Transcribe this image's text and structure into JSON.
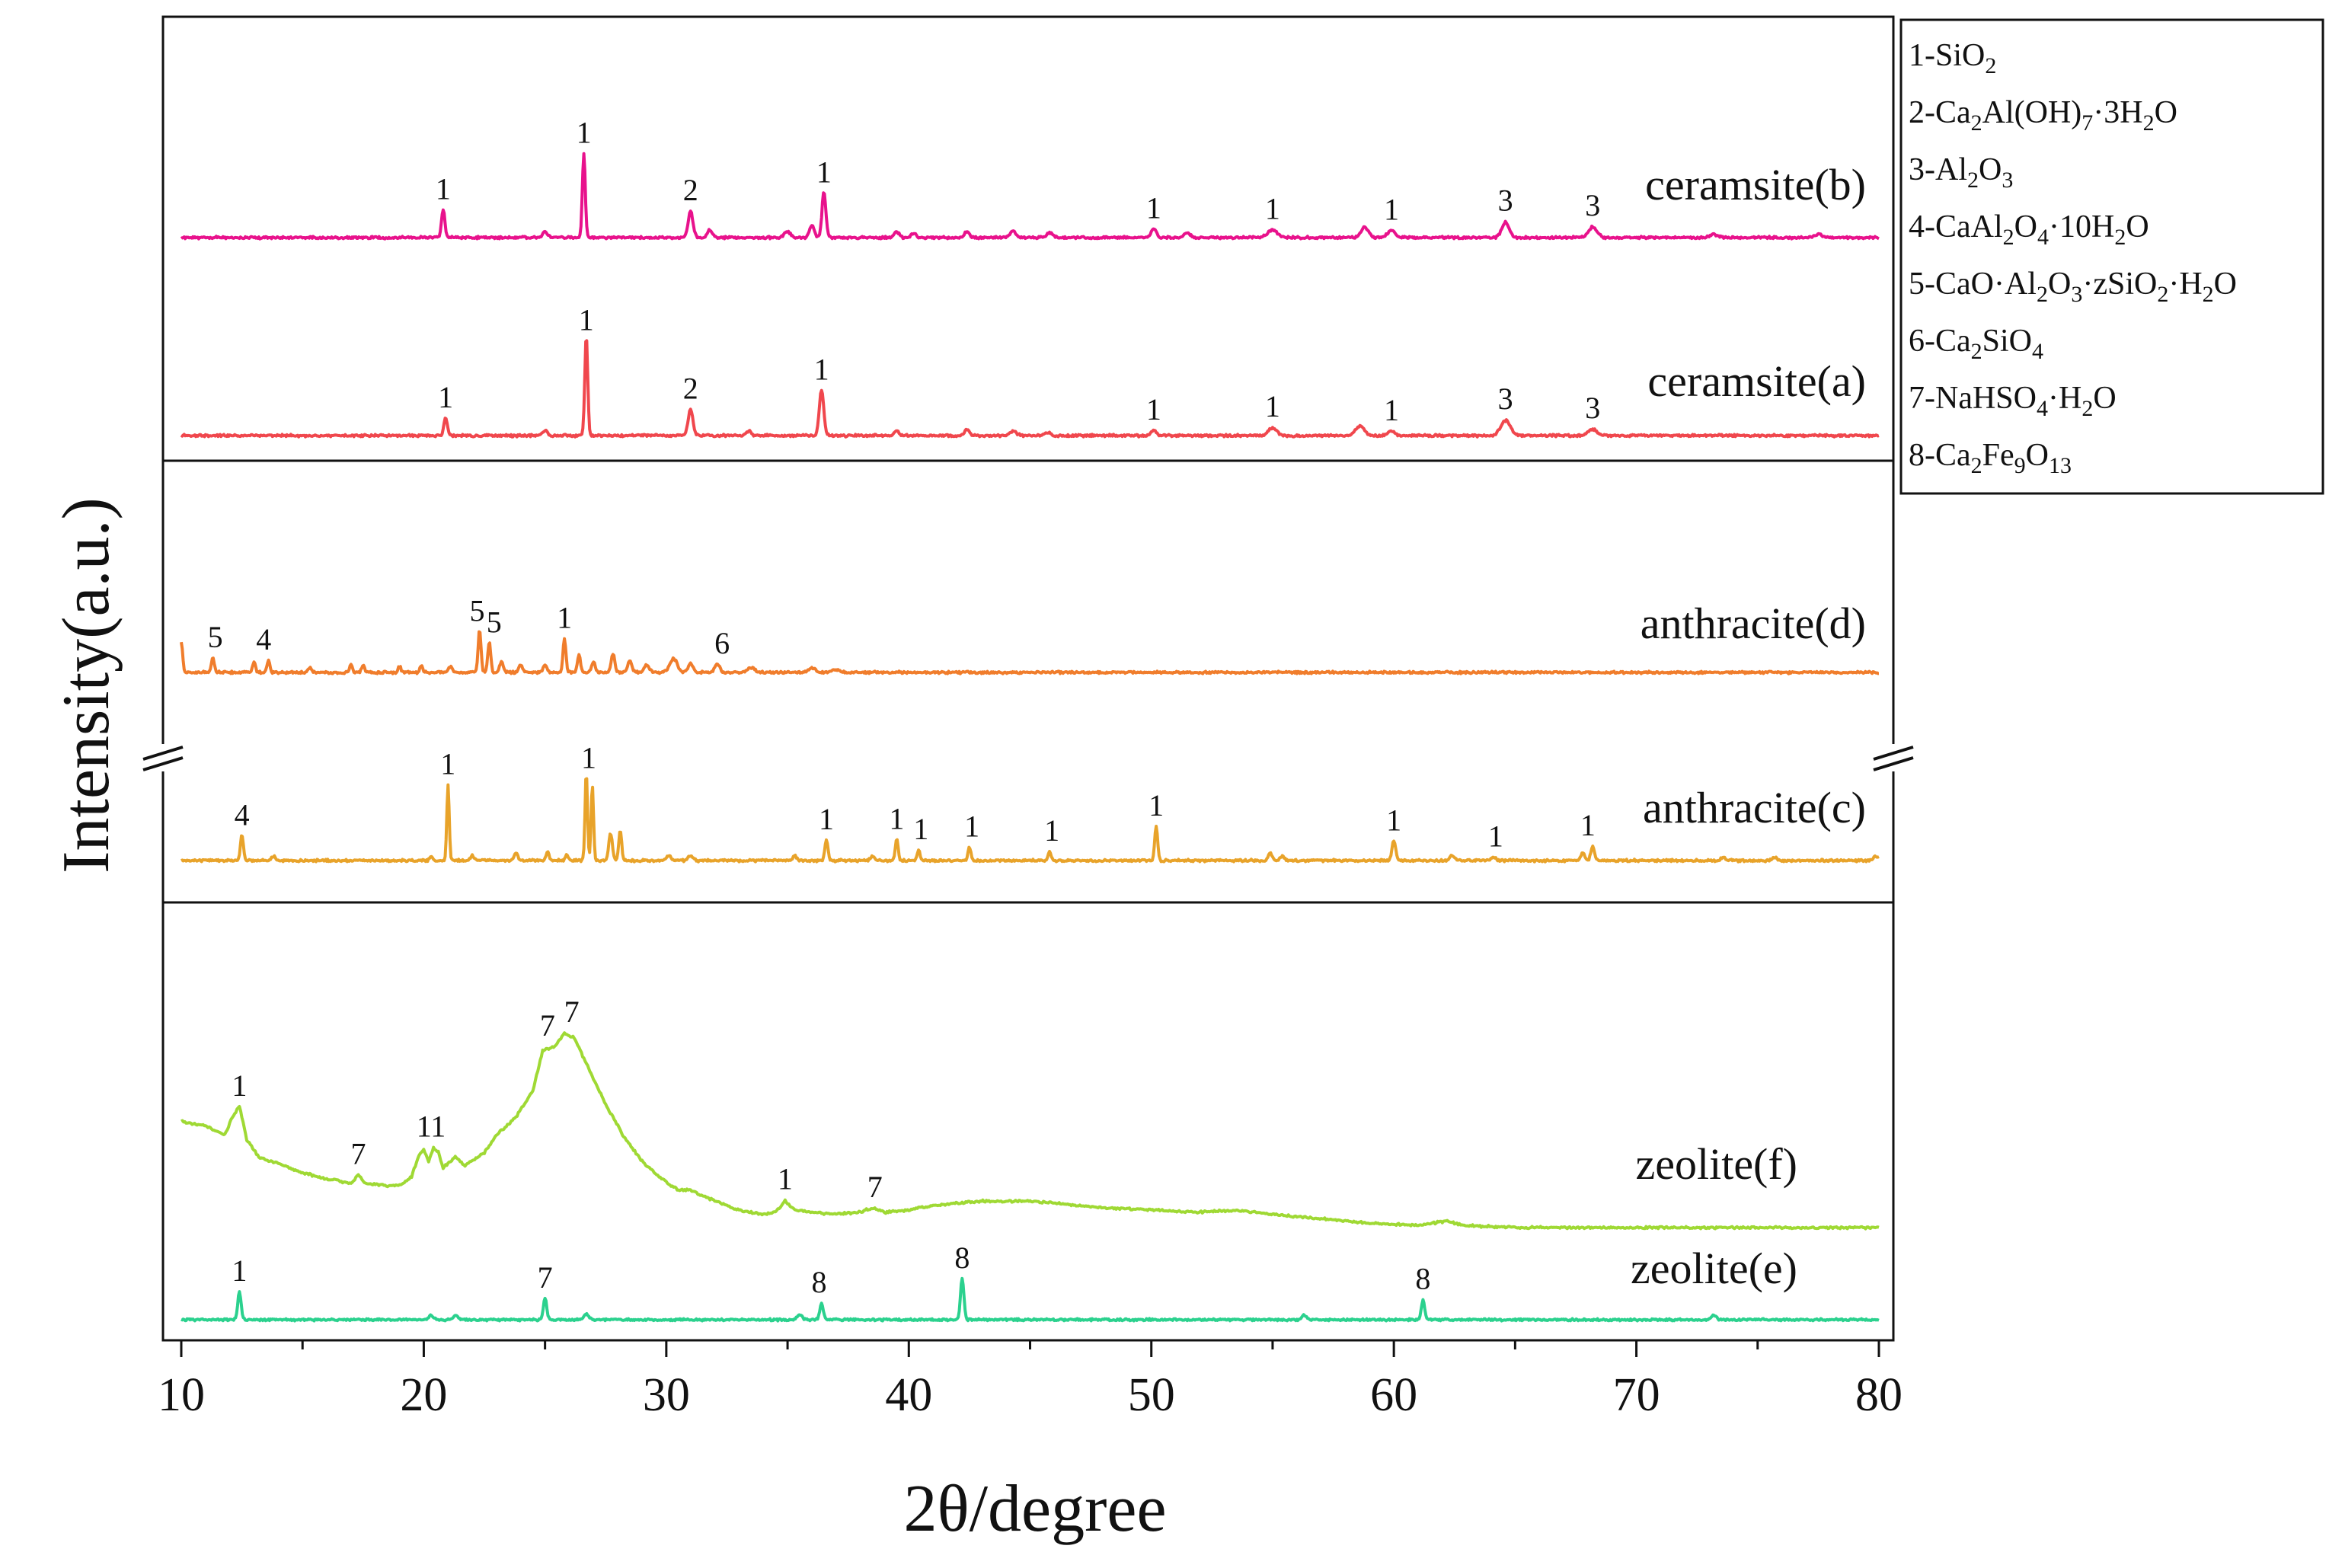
{
  "chart_data": {
    "type": "line",
    "xlabel": "2θ/degree",
    "ylabel": "Intensity(a.u.)",
    "xlim": [
      10,
      80
    ],
    "xticks": [
      "10",
      "20",
      "30",
      "40",
      "50",
      "60",
      "70",
      "80"
    ],
    "legend": [
      {
        "n": "1",
        "parts": [
          [
            "SiO",
            ""
          ],
          [
            "2",
            "sub"
          ]
        ]
      },
      {
        "n": "2",
        "parts": [
          [
            "Ca",
            ""
          ],
          [
            "2",
            "sub"
          ],
          [
            "Al(OH)",
            ""
          ],
          [
            "7",
            "sub"
          ],
          [
            "·3H",
            ""
          ],
          [
            "2",
            "sub"
          ],
          [
            "O",
            ""
          ]
        ]
      },
      {
        "n": "3",
        "parts": [
          [
            "Al",
            ""
          ],
          [
            "2",
            "sub"
          ],
          [
            "O",
            ""
          ],
          [
            "3",
            "sub"
          ]
        ]
      },
      {
        "n": "4",
        "parts": [
          [
            "CaAl",
            ""
          ],
          [
            "2",
            "sub"
          ],
          [
            "O",
            ""
          ],
          [
            "4",
            "sub"
          ],
          [
            "·10H",
            ""
          ],
          [
            "2",
            "sub"
          ],
          [
            "O",
            ""
          ]
        ]
      },
      {
        "n": "5",
        "parts": [
          [
            "CaO·Al",
            ""
          ],
          [
            "2",
            "sub"
          ],
          [
            "O",
            ""
          ],
          [
            "3",
            "sub"
          ],
          [
            "·zSiO",
            ""
          ],
          [
            "2",
            "sub"
          ],
          [
            "·H",
            ""
          ],
          [
            "2",
            "sub"
          ],
          [
            "O",
            ""
          ]
        ]
      },
      {
        "n": "6",
        "parts": [
          [
            "Ca",
            ""
          ],
          [
            "2",
            "sub"
          ],
          [
            "SiO",
            ""
          ],
          [
            "4",
            "sub"
          ]
        ]
      },
      {
        "n": "7",
        "parts": [
          [
            "NaHSO",
            ""
          ],
          [
            "4",
            "sub"
          ],
          [
            "·H",
            ""
          ],
          [
            "2",
            "sub"
          ],
          [
            "O",
            ""
          ]
        ]
      },
      {
        "n": "8",
        "parts": [
          [
            "Ca",
            ""
          ],
          [
            "2",
            "sub"
          ],
          [
            "Fe",
            ""
          ],
          [
            "9",
            "sub"
          ],
          [
            "O",
            ""
          ],
          [
            "13",
            "sub"
          ]
        ]
      }
    ],
    "series": [
      {
        "name": "ceramsite(b)",
        "color": "#e8128c",
        "baseline": 0.0,
        "peaks": [
          [
            20.8,
            0.18,
            0.14
          ],
          [
            25.0,
            0.04,
            0.2
          ],
          [
            26.6,
            0.55,
            0.12
          ],
          [
            31.0,
            0.17,
            0.2
          ],
          [
            31.8,
            0.05,
            0.2
          ],
          [
            35.0,
            0.04,
            0.25
          ],
          [
            36.0,
            0.08,
            0.2
          ],
          [
            36.5,
            0.3,
            0.16
          ],
          [
            39.5,
            0.04,
            0.2
          ],
          [
            40.2,
            0.03,
            0.2
          ],
          [
            42.4,
            0.04,
            0.2
          ],
          [
            44.3,
            0.04,
            0.25
          ],
          [
            45.8,
            0.03,
            0.25
          ],
          [
            50.1,
            0.06,
            0.2
          ],
          [
            51.5,
            0.03,
            0.25
          ],
          [
            55.0,
            0.05,
            0.4
          ],
          [
            58.8,
            0.07,
            0.3
          ],
          [
            59.9,
            0.05,
            0.3
          ],
          [
            64.6,
            0.1,
            0.3
          ],
          [
            68.2,
            0.07,
            0.35
          ],
          [
            73.2,
            0.02,
            0.35
          ],
          [
            77.5,
            0.02,
            0.35
          ]
        ],
        "labels": [
          [
            "1",
            20.8
          ],
          [
            "1",
            26.6
          ],
          [
            "2",
            31.0
          ],
          [
            "1",
            36.5
          ],
          [
            "1",
            50.1
          ],
          [
            "1",
            55.0
          ],
          [
            "1",
            59.9
          ],
          [
            "3",
            64.6
          ],
          [
            "3",
            68.2
          ]
        ]
      },
      {
        "name": "ceramsite(a)",
        "color": "#f0474d",
        "baseline": 0.0,
        "peaks": [
          [
            20.9,
            0.12,
            0.14
          ],
          [
            25.0,
            0.03,
            0.2
          ],
          [
            26.7,
            0.65,
            0.12
          ],
          [
            31.0,
            0.17,
            0.2
          ],
          [
            33.4,
            0.03,
            0.2
          ],
          [
            36.4,
            0.3,
            0.18
          ],
          [
            39.5,
            0.03,
            0.2
          ],
          [
            42.4,
            0.04,
            0.2
          ],
          [
            44.3,
            0.03,
            0.25
          ],
          [
            45.7,
            0.02,
            0.25
          ],
          [
            50.1,
            0.04,
            0.2
          ],
          [
            55.0,
            0.05,
            0.35
          ],
          [
            58.6,
            0.06,
            0.35
          ],
          [
            59.9,
            0.03,
            0.3
          ],
          [
            64.6,
            0.1,
            0.4
          ],
          [
            68.2,
            0.04,
            0.35
          ]
        ],
        "labels": [
          [
            "1",
            20.9
          ],
          [
            "1",
            26.7
          ],
          [
            "2",
            31.0
          ],
          [
            "1",
            36.4
          ],
          [
            "1",
            50.1
          ],
          [
            "1",
            55.0
          ],
          [
            "1",
            59.9
          ],
          [
            "3",
            64.6
          ],
          [
            "3",
            68.2
          ]
        ]
      },
      {
        "name": "anthracite(d)",
        "color": "#f07d2c",
        "baseline": 0.02,
        "peaks": [
          [
            10.0,
            0.2,
            0.12
          ],
          [
            11.3,
            0.1,
            0.12
          ],
          [
            13.0,
            0.07,
            0.12
          ],
          [
            13.6,
            0.08,
            0.12
          ],
          [
            15.3,
            0.03,
            0.15
          ],
          [
            17.0,
            0.05,
            0.12
          ],
          [
            17.5,
            0.05,
            0.12
          ],
          [
            19.0,
            0.04,
            0.12
          ],
          [
            19.9,
            0.05,
            0.12
          ],
          [
            21.1,
            0.04,
            0.15
          ],
          [
            22.3,
            0.28,
            0.12
          ],
          [
            22.7,
            0.2,
            0.12
          ],
          [
            23.2,
            0.07,
            0.15
          ],
          [
            24.0,
            0.05,
            0.15
          ],
          [
            25.0,
            0.05,
            0.15
          ],
          [
            25.8,
            0.22,
            0.12
          ],
          [
            26.4,
            0.12,
            0.12
          ],
          [
            27.0,
            0.07,
            0.15
          ],
          [
            27.8,
            0.12,
            0.15
          ],
          [
            28.5,
            0.08,
            0.15
          ],
          [
            29.2,
            0.05,
            0.2
          ],
          [
            30.3,
            0.09,
            0.3
          ],
          [
            31.0,
            0.06,
            0.2
          ],
          [
            32.1,
            0.06,
            0.2
          ],
          [
            33.5,
            0.03,
            0.3
          ],
          [
            36.0,
            0.03,
            0.3
          ],
          [
            37.0,
            0.02,
            0.3
          ]
        ],
        "labels": [
          [
            "5",
            11.4
          ],
          [
            "4",
            13.4
          ],
          [
            "5",
            22.2
          ],
          [
            "5",
            22.9
          ],
          [
            "1",
            25.8
          ],
          [
            "6",
            32.3
          ]
        ]
      },
      {
        "name": "anthracite(c)",
        "color": "#e8a32a",
        "baseline": 0.0,
        "peaks": [
          [
            12.5,
            0.17,
            0.12
          ],
          [
            13.8,
            0.03,
            0.15
          ],
          [
            20.3,
            0.03,
            0.12
          ],
          [
            21.0,
            0.5,
            0.1
          ],
          [
            22.0,
            0.03,
            0.15
          ],
          [
            23.8,
            0.05,
            0.15
          ],
          [
            25.1,
            0.06,
            0.12
          ],
          [
            25.9,
            0.04,
            0.12
          ],
          [
            26.7,
            0.58,
            0.1
          ],
          [
            26.95,
            0.5,
            0.1
          ],
          [
            27.7,
            0.18,
            0.15
          ],
          [
            28.1,
            0.2,
            0.12
          ],
          [
            30.1,
            0.03,
            0.2
          ],
          [
            31.0,
            0.03,
            0.2
          ],
          [
            35.3,
            0.03,
            0.15
          ],
          [
            36.6,
            0.14,
            0.12
          ],
          [
            38.5,
            0.03,
            0.15
          ],
          [
            39.5,
            0.14,
            0.12
          ],
          [
            40.4,
            0.07,
            0.12
          ],
          [
            42.5,
            0.09,
            0.12
          ],
          [
            45.8,
            0.06,
            0.12
          ],
          [
            50.2,
            0.23,
            0.12
          ],
          [
            54.9,
            0.05,
            0.15
          ],
          [
            55.4,
            0.03,
            0.15
          ],
          [
            60.0,
            0.13,
            0.15
          ],
          [
            62.4,
            0.03,
            0.2
          ],
          [
            64.1,
            0.02,
            0.2
          ],
          [
            67.8,
            0.05,
            0.15
          ],
          [
            68.2,
            0.09,
            0.15
          ],
          [
            73.6,
            0.02,
            0.2
          ],
          [
            75.7,
            0.02,
            0.2
          ],
          [
            79.9,
            0.03,
            0.2
          ]
        ],
        "labels": [
          [
            "4",
            12.5
          ],
          [
            "1",
            21.0
          ],
          [
            "1",
            26.8
          ],
          [
            "1",
            36.6
          ],
          [
            "1",
            39.5
          ],
          [
            "1",
            40.5
          ],
          [
            "1",
            42.6
          ],
          [
            "1",
            45.9
          ],
          [
            "1",
            50.2
          ],
          [
            "1",
            60.0
          ],
          [
            "1",
            64.2
          ],
          [
            "1",
            68.0
          ]
        ]
      },
      {
        "name": "zeolite(f)",
        "color": "#9fd934",
        "baseline": 0.0,
        "points": [
          [
            10.0,
            0.48
          ],
          [
            11.0,
            0.46
          ],
          [
            11.8,
            0.42
          ],
          [
            12.1,
            0.5
          ],
          [
            12.4,
            0.55
          ],
          [
            12.7,
            0.4
          ],
          [
            13.2,
            0.32
          ],
          [
            14.0,
            0.29
          ],
          [
            15.0,
            0.25
          ],
          [
            16.0,
            0.22
          ],
          [
            17.0,
            0.2
          ],
          [
            17.3,
            0.24
          ],
          [
            17.6,
            0.2
          ],
          [
            18.5,
            0.19
          ],
          [
            19.0,
            0.19
          ],
          [
            19.5,
            0.23
          ],
          [
            19.8,
            0.33
          ],
          [
            20.0,
            0.35
          ],
          [
            20.2,
            0.3
          ],
          [
            20.4,
            0.36
          ],
          [
            20.6,
            0.34
          ],
          [
            20.8,
            0.27
          ],
          [
            21.3,
            0.32
          ],
          [
            21.7,
            0.28
          ],
          [
            22.5,
            0.34
          ],
          [
            23.0,
            0.42
          ],
          [
            23.8,
            0.5
          ],
          [
            24.5,
            0.62
          ],
          [
            24.9,
            0.8
          ],
          [
            25.4,
            0.82
          ],
          [
            25.8,
            0.88
          ],
          [
            26.2,
            0.86
          ],
          [
            26.8,
            0.72
          ],
          [
            27.5,
            0.56
          ],
          [
            28.2,
            0.42
          ],
          [
            29.0,
            0.3
          ],
          [
            29.8,
            0.22
          ],
          [
            30.5,
            0.17
          ],
          [
            31.0,
            0.17
          ],
          [
            32.0,
            0.12
          ],
          [
            33.0,
            0.08
          ],
          [
            34.0,
            0.06
          ],
          [
            34.5,
            0.07
          ],
          [
            34.9,
            0.12
          ],
          [
            35.3,
            0.08
          ],
          [
            36.0,
            0.07
          ],
          [
            37.0,
            0.06
          ],
          [
            38.0,
            0.07
          ],
          [
            38.5,
            0.09
          ],
          [
            39.0,
            0.07
          ],
          [
            40.0,
            0.08
          ],
          [
            41.0,
            0.1
          ],
          [
            42.0,
            0.11
          ],
          [
            43.0,
            0.12
          ],
          [
            44.0,
            0.12
          ],
          [
            45.0,
            0.12
          ],
          [
            46.0,
            0.11
          ],
          [
            48.0,
            0.09
          ],
          [
            50.0,
            0.08
          ],
          [
            52.0,
            0.07
          ],
          [
            53.5,
            0.08
          ],
          [
            55.0,
            0.06
          ],
          [
            57.0,
            0.04
          ],
          [
            59.0,
            0.02
          ],
          [
            61.0,
            0.01
          ],
          [
            62.2,
            0.03
          ],
          [
            62.8,
            0.01
          ],
          [
            65.0,
            0.0
          ],
          [
            70.0,
            0.0
          ],
          [
            75.0,
            0.0
          ],
          [
            80.0,
            0.0
          ]
        ],
        "labels": [
          [
            "1",
            12.4
          ],
          [
            "7",
            17.3
          ],
          [
            "11",
            20.3
          ],
          [
            "7",
            25.1
          ],
          [
            "7",
            26.1
          ],
          [
            "1",
            34.9
          ],
          [
            "7",
            38.6
          ]
        ]
      },
      {
        "name": "zeolite(e)",
        "color": "#2bd18e",
        "baseline": 0.0,
        "peaks": [
          [
            12.4,
            0.2,
            0.14
          ],
          [
            20.3,
            0.03,
            0.2
          ],
          [
            21.3,
            0.03,
            0.2
          ],
          [
            25.0,
            0.16,
            0.14
          ],
          [
            26.7,
            0.04,
            0.2
          ],
          [
            35.5,
            0.04,
            0.2
          ],
          [
            36.4,
            0.12,
            0.14
          ],
          [
            42.2,
            0.3,
            0.14
          ],
          [
            56.3,
            0.03,
            0.2
          ],
          [
            61.2,
            0.14,
            0.14
          ],
          [
            73.2,
            0.03,
            0.2
          ]
        ],
        "labels": [
          [
            "1",
            12.4
          ],
          [
            "7",
            25.0
          ],
          [
            "8",
            36.3
          ],
          [
            "8",
            42.2
          ],
          [
            "8",
            61.2
          ]
        ]
      }
    ]
  }
}
